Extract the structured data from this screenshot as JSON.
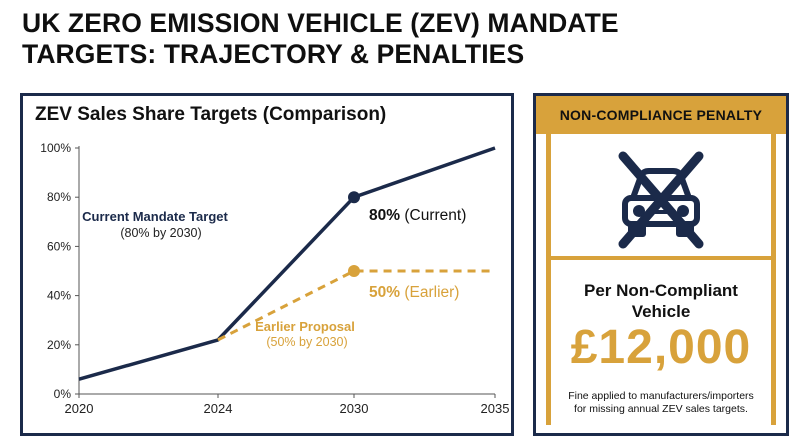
{
  "title": {
    "line1": "UK ZERO EMISSION VEHICLE (ZEV) MANDATE",
    "line2": "TARGETS: TRAJECTORY & PENALTIES"
  },
  "chart_data": {
    "type": "line",
    "title": "ZEV Sales Share Targets (Comparison)",
    "x_ticks": [
      "2020",
      "2024",
      "2030",
      "2035"
    ],
    "y_ticks": [
      "0%",
      "20%",
      "40%",
      "60%",
      "80%",
      "100%"
    ],
    "ylim": [
      0,
      100
    ],
    "series": [
      {
        "name": "Current Mandate Target",
        "sublabel": "(80% by 2030)",
        "color": "#1b2a4a",
        "style": "solid",
        "points": [
          [
            2020,
            6
          ],
          [
            2024,
            22
          ],
          [
            2030,
            80
          ],
          [
            2035,
            100
          ]
        ],
        "marker": [
          2030,
          80
        ],
        "marker_label_value": "80%",
        "marker_label_suffix": "(Current)"
      },
      {
        "name": "Earlier Proposal",
        "sublabel": "(50% by 2030)",
        "color": "#d8a23b",
        "style": "dashed",
        "points": [
          [
            2024,
            22
          ],
          [
            2030,
            50
          ],
          [
            2035,
            50
          ]
        ],
        "marker": [
          2030,
          50
        ],
        "marker_label_value": "50%",
        "marker_label_suffix": "(Earlier)"
      }
    ]
  },
  "penalty": {
    "header": "NON-COMPLIANCE PENALTY",
    "icon": "crossed-out-car-icon",
    "label_line1": "Per Non-Compliant",
    "label_line2": "Vehicle",
    "amount": "£12,000",
    "note_line1": "Fine applied to manufacturers/importers",
    "note_line2": "for missing annual ZEV sales targets.",
    "accent_color": "#d8a23b",
    "navy_color": "#1b2a4a"
  }
}
